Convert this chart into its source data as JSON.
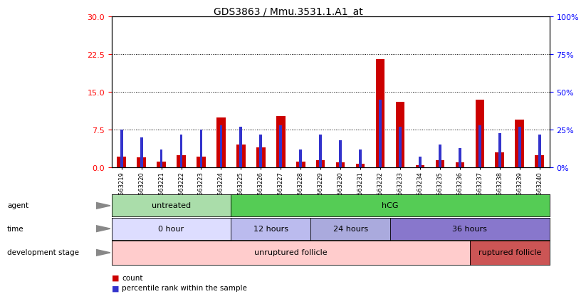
{
  "title": "GDS3863 / Mmu.3531.1.A1_at",
  "samples": [
    "GSM563219",
    "GSM563220",
    "GSM563221",
    "GSM563222",
    "GSM563223",
    "GSM563224",
    "GSM563225",
    "GSM563226",
    "GSM563227",
    "GSM563228",
    "GSM563229",
    "GSM563230",
    "GSM563231",
    "GSM563232",
    "GSM563233",
    "GSM563234",
    "GSM563235",
    "GSM563236",
    "GSM563237",
    "GSM563238",
    "GSM563239",
    "GSM563240"
  ],
  "count": [
    2.2,
    2.0,
    1.2,
    2.5,
    2.2,
    10.0,
    4.5,
    4.0,
    10.2,
    1.2,
    1.5,
    1.0,
    0.8,
    21.5,
    13.0,
    0.5,
    1.5,
    1.0,
    13.5,
    3.0,
    9.5,
    2.5
  ],
  "percentile": [
    25.0,
    20.0,
    12.0,
    22.0,
    25.0,
    28.0,
    27.0,
    22.0,
    28.0,
    12.0,
    22.0,
    18.0,
    12.0,
    45.0,
    27.0,
    7.0,
    15.0,
    13.0,
    28.0,
    23.0,
    27.0,
    22.0
  ],
  "left_ylim": [
    0,
    30
  ],
  "left_yticks": [
    0,
    7.5,
    15,
    22.5,
    30
  ],
  "right_ylim": [
    0,
    100
  ],
  "right_yticks": [
    0,
    25,
    50,
    75,
    100
  ],
  "bar_color_red": "#cc0000",
  "bar_color_blue": "#3333cc",
  "agent_groups": [
    {
      "label": "untreated",
      "start": 0,
      "end": 6,
      "color": "#aaddaa"
    },
    {
      "label": "hCG",
      "start": 6,
      "end": 22,
      "color": "#55cc55"
    }
  ],
  "time_groups": [
    {
      "label": "0 hour",
      "start": 0,
      "end": 6,
      "color": "#ddddff"
    },
    {
      "label": "12 hours",
      "start": 6,
      "end": 10,
      "color": "#bbbbee"
    },
    {
      "label": "24 hours",
      "start": 10,
      "end": 14,
      "color": "#aaaadd"
    },
    {
      "label": "36 hours",
      "start": 14,
      "end": 22,
      "color": "#8877cc"
    }
  ],
  "dev_groups": [
    {
      "label": "unruptured follicle",
      "start": 0,
      "end": 18,
      "color": "#ffcccc"
    },
    {
      "label": "ruptured follicle",
      "start": 18,
      "end": 22,
      "color": "#cc5555"
    }
  ],
  "legend_red": "count",
  "legend_blue": "percentile rank within the sample"
}
